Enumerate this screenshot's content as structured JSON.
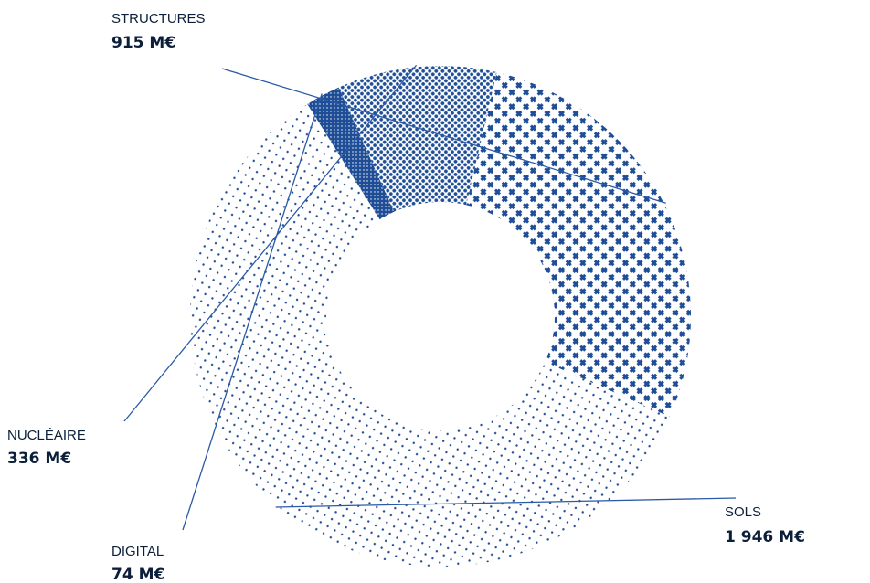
{
  "chart_data": {
    "type": "pie",
    "donut": true,
    "unit": "M€",
    "colors": {
      "primary": "#1f4e96",
      "dark": "#0b1f3a",
      "leader": "#2a5aa6"
    },
    "slices": [
      {
        "label": "STRUCTURES",
        "value": 915,
        "value_label": "915 M€",
        "pattern": "cross"
      },
      {
        "label": "SOLS",
        "value": 1946,
        "value_label": "1 946 M€",
        "pattern": "fine-dots"
      },
      {
        "label": "DIGITAL",
        "value": 74,
        "value_label": "74 M€",
        "pattern": "solid"
      },
      {
        "label": "NUCLÉAIRE",
        "value": 336,
        "value_label": "336 M€",
        "pattern": "dense-dots"
      }
    ]
  }
}
